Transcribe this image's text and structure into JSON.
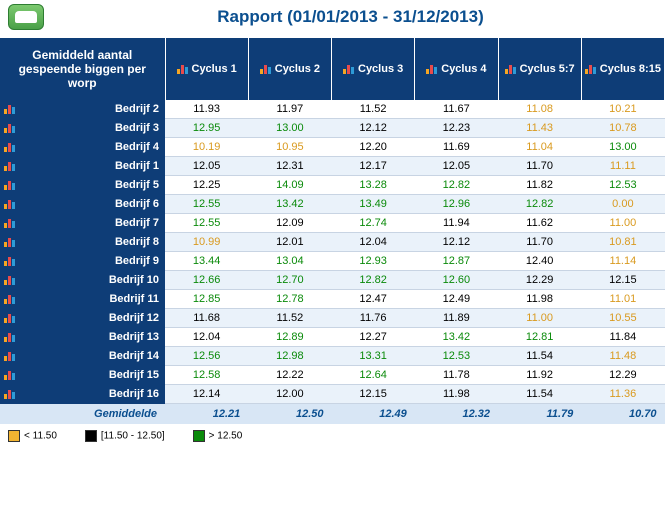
{
  "header": {
    "title": "Rapport (01/01/2013 - 31/12/2013)"
  },
  "table": {
    "corner": "Gemiddeld aantal gespeende biggen per worp",
    "columns": [
      "Cyclus 1",
      "Cyclus 2",
      "Cyclus 3",
      "Cyclus 4",
      "Cyclus 5:7",
      "Cyclus 8:15"
    ],
    "rows": [
      {
        "label": "Bedrijf 2",
        "cells": [
          {
            "v": "11.93",
            "c": "mid"
          },
          {
            "v": "11.97",
            "c": "mid"
          },
          {
            "v": "11.52",
            "c": "mid"
          },
          {
            "v": "11.67",
            "c": "mid"
          },
          {
            "v": "11.08",
            "c": "low"
          },
          {
            "v": "10.21",
            "c": "low"
          }
        ]
      },
      {
        "label": "Bedrijf 3",
        "cells": [
          {
            "v": "12.95",
            "c": "high"
          },
          {
            "v": "13.00",
            "c": "high"
          },
          {
            "v": "12.12",
            "c": "mid"
          },
          {
            "v": "12.23",
            "c": "mid"
          },
          {
            "v": "11.43",
            "c": "low"
          },
          {
            "v": "10.78",
            "c": "low"
          }
        ]
      },
      {
        "label": "Bedrijf 4",
        "cells": [
          {
            "v": "10.19",
            "c": "low"
          },
          {
            "v": "10.95",
            "c": "low"
          },
          {
            "v": "12.20",
            "c": "mid"
          },
          {
            "v": "11.69",
            "c": "mid"
          },
          {
            "v": "11.04",
            "c": "low"
          },
          {
            "v": "13.00",
            "c": "high"
          }
        ]
      },
      {
        "label": "Bedrijf 1",
        "cells": [
          {
            "v": "12.05",
            "c": "mid"
          },
          {
            "v": "12.31",
            "c": "mid"
          },
          {
            "v": "12.17",
            "c": "mid"
          },
          {
            "v": "12.05",
            "c": "mid"
          },
          {
            "v": "11.70",
            "c": "mid"
          },
          {
            "v": "11.11",
            "c": "low"
          }
        ]
      },
      {
        "label": "Bedrijf 5",
        "cells": [
          {
            "v": "12.25",
            "c": "mid"
          },
          {
            "v": "14.09",
            "c": "high"
          },
          {
            "v": "13.28",
            "c": "high"
          },
          {
            "v": "12.82",
            "c": "high"
          },
          {
            "v": "11.82",
            "c": "mid"
          },
          {
            "v": "12.53",
            "c": "high"
          }
        ]
      },
      {
        "label": "Bedrijf 6",
        "cells": [
          {
            "v": "12.55",
            "c": "high"
          },
          {
            "v": "13.42",
            "c": "high"
          },
          {
            "v": "13.49",
            "c": "high"
          },
          {
            "v": "12.96",
            "c": "high"
          },
          {
            "v": "12.82",
            "c": "high"
          },
          {
            "v": "0.00",
            "c": "zero"
          }
        ]
      },
      {
        "label": "Bedrijf 7",
        "cells": [
          {
            "v": "12.55",
            "c": "high"
          },
          {
            "v": "12.09",
            "c": "mid"
          },
          {
            "v": "12.74",
            "c": "high"
          },
          {
            "v": "11.94",
            "c": "mid"
          },
          {
            "v": "11.62",
            "c": "mid"
          },
          {
            "v": "11.00",
            "c": "low"
          }
        ]
      },
      {
        "label": "Bedrijf 8",
        "cells": [
          {
            "v": "10.99",
            "c": "low"
          },
          {
            "v": "12.01",
            "c": "mid"
          },
          {
            "v": "12.04",
            "c": "mid"
          },
          {
            "v": "12.12",
            "c": "mid"
          },
          {
            "v": "11.70",
            "c": "mid"
          },
          {
            "v": "10.81",
            "c": "low"
          }
        ]
      },
      {
        "label": "Bedrijf 9",
        "cells": [
          {
            "v": "13.44",
            "c": "high"
          },
          {
            "v": "13.04",
            "c": "high"
          },
          {
            "v": "12.93",
            "c": "high"
          },
          {
            "v": "12.87",
            "c": "high"
          },
          {
            "v": "12.40",
            "c": "mid"
          },
          {
            "v": "11.14",
            "c": "low"
          }
        ]
      },
      {
        "label": "Bedrijf 10",
        "cells": [
          {
            "v": "12.66",
            "c": "high"
          },
          {
            "v": "12.70",
            "c": "high"
          },
          {
            "v": "12.82",
            "c": "high"
          },
          {
            "v": "12.60",
            "c": "high"
          },
          {
            "v": "12.29",
            "c": "mid"
          },
          {
            "v": "12.15",
            "c": "mid"
          }
        ]
      },
      {
        "label": "Bedrijf 11",
        "cells": [
          {
            "v": "12.85",
            "c": "high"
          },
          {
            "v": "12.78",
            "c": "high"
          },
          {
            "v": "12.47",
            "c": "mid"
          },
          {
            "v": "12.49",
            "c": "mid"
          },
          {
            "v": "11.98",
            "c": "mid"
          },
          {
            "v": "11.01",
            "c": "low"
          }
        ]
      },
      {
        "label": "Bedrijf 12",
        "cells": [
          {
            "v": "11.68",
            "c": "mid"
          },
          {
            "v": "11.52",
            "c": "mid"
          },
          {
            "v": "11.76",
            "c": "mid"
          },
          {
            "v": "11.89",
            "c": "mid"
          },
          {
            "v": "11.00",
            "c": "low"
          },
          {
            "v": "10.55",
            "c": "low"
          }
        ]
      },
      {
        "label": "Bedrijf 13",
        "cells": [
          {
            "v": "12.04",
            "c": "mid"
          },
          {
            "v": "12.89",
            "c": "high"
          },
          {
            "v": "12.27",
            "c": "mid"
          },
          {
            "v": "13.42",
            "c": "high"
          },
          {
            "v": "12.81",
            "c": "high"
          },
          {
            "v": "11.84",
            "c": "mid"
          }
        ]
      },
      {
        "label": "Bedrijf 14",
        "cells": [
          {
            "v": "12.56",
            "c": "high"
          },
          {
            "v": "12.98",
            "c": "high"
          },
          {
            "v": "13.31",
            "c": "high"
          },
          {
            "v": "12.53",
            "c": "high"
          },
          {
            "v": "11.54",
            "c": "mid"
          },
          {
            "v": "11.48",
            "c": "low"
          }
        ]
      },
      {
        "label": "Bedrijf 15",
        "cells": [
          {
            "v": "12.58",
            "c": "high"
          },
          {
            "v": "12.22",
            "c": "mid"
          },
          {
            "v": "12.64",
            "c": "high"
          },
          {
            "v": "11.78",
            "c": "mid"
          },
          {
            "v": "11.92",
            "c": "mid"
          },
          {
            "v": "12.29",
            "c": "mid"
          }
        ]
      },
      {
        "label": "Bedrijf 16",
        "cells": [
          {
            "v": "12.14",
            "c": "mid"
          },
          {
            "v": "12.00",
            "c": "mid"
          },
          {
            "v": "12.15",
            "c": "mid"
          },
          {
            "v": "11.98",
            "c": "mid"
          },
          {
            "v": "11.54",
            "c": "mid"
          },
          {
            "v": "11.36",
            "c": "low"
          }
        ]
      }
    ],
    "average": {
      "label": "Gemiddelde",
      "values": [
        "12.21",
        "12.50",
        "12.49",
        "12.32",
        "11.79",
        "10.70"
      ]
    }
  },
  "legend": {
    "items": [
      {
        "color": "#f2b431",
        "text": "< 11.50"
      },
      {
        "color": "#000000",
        "text": "[11.50 - 12.50]"
      },
      {
        "color": "#0a8a0a",
        "text": "> 12.50"
      }
    ]
  },
  "colors": {
    "header_bg": "#0e3d77",
    "row_even": "#eaf2fa",
    "avg_bg": "#d8e6f5",
    "title": "#0b4f8f"
  }
}
